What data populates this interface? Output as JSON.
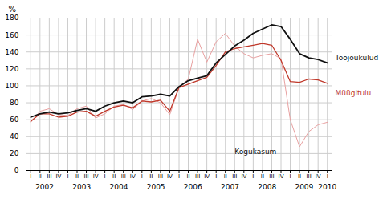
{
  "chart_data": {
    "type": "line",
    "ylabel": "%",
    "categories": [
      "I",
      "II",
      "III",
      "IV",
      "I",
      "II",
      "III",
      "IV",
      "I",
      "II",
      "III",
      "IV",
      "I",
      "II",
      "III",
      "IV",
      "I",
      "II",
      "III",
      "IV",
      "I",
      "II",
      "III",
      "IV",
      "I",
      "II",
      "III",
      "IV",
      "I",
      "II",
      "III",
      "IV",
      "I"
    ],
    "years": [
      2002,
      2002,
      2002,
      2002,
      2003,
      2003,
      2003,
      2003,
      2004,
      2004,
      2004,
      2004,
      2005,
      2005,
      2005,
      2005,
      2006,
      2006,
      2006,
      2006,
      2007,
      2007,
      2007,
      2007,
      2008,
      2008,
      2008,
      2008,
      2009,
      2009,
      2009,
      2009,
      2010
    ],
    "series": [
      {
        "name": "Kogukasum",
        "color": "#e8a0a0",
        "values": [
          57,
          70,
          73,
          66,
          65,
          73,
          76,
          62,
          67,
          76,
          78,
          72,
          82,
          85,
          80,
          66,
          98,
          108,
          155,
          128,
          152,
          162,
          147,
          138,
          133,
          136,
          138,
          132,
          60,
          28,
          46,
          54,
          57
        ]
      },
      {
        "name": "Müügitulu",
        "color": "#c0392b",
        "values": [
          58,
          67,
          67,
          63,
          64,
          69,
          70,
          64,
          70,
          75,
          77,
          74,
          82,
          81,
          83,
          70,
          98,
          102,
          106,
          110,
          124,
          140,
          144,
          146,
          148,
          150,
          148,
          130,
          105,
          104,
          108,
          107,
          103
        ]
      },
      {
        "name": "Tööjõukulud",
        "color": "#111111",
        "values": [
          63,
          67,
          69,
          67,
          68,
          71,
          73,
          70,
          76,
          80,
          82,
          80,
          87,
          88,
          90,
          88,
          99,
          106,
          109,
          112,
          127,
          137,
          147,
          154,
          162,
          167,
          172,
          170,
          155,
          138,
          133,
          131,
          127
        ]
      }
    ],
    "ylim": [
      0,
      180
    ],
    "yticks": [
      0,
      20,
      40,
      60,
      80,
      100,
      120,
      140,
      160,
      180
    ],
    "grid": true,
    "annotations": [
      {
        "text": "Kogukasum",
        "x": 22,
        "y": 22,
        "color": "#111111"
      }
    ]
  }
}
